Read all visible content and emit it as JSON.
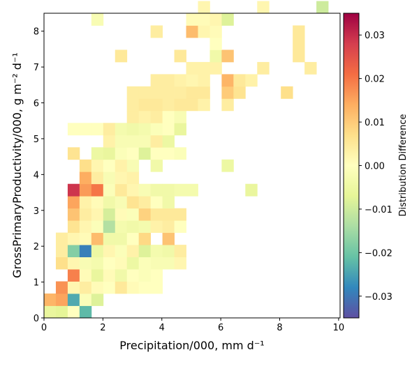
{
  "chart_data": {
    "type": "heatmap",
    "xlabel": "Precipitation/000,  mm d⁻¹",
    "ylabel": "GrossPrimaryProductivity/000,  g m⁻² d⁻¹",
    "colorbar_label": "Distribution Difference",
    "xlim": [
      0,
      10.05
    ],
    "ylim": [
      0,
      8.5
    ],
    "x_ticks": [
      0,
      2,
      4,
      6,
      8,
      10
    ],
    "y_ticks": [
      0,
      1,
      2,
      3,
      4,
      5,
      6,
      7,
      8
    ],
    "colorbar_range": [
      -0.035,
      0.035
    ],
    "colorbar_ticks": [
      -0.03,
      -0.02,
      -0.01,
      0.0,
      0.01,
      0.02,
      0.03
    ],
    "colormap": "Spectral_r",
    "bin_width_x": 0.402,
    "bin_height_y": 0.34,
    "cells": [
      [
        0,
        0,
        -0.006
      ],
      [
        1,
        0,
        -0.007
      ],
      [
        2,
        0,
        0.0
      ],
      [
        3,
        0,
        -0.022
      ],
      [
        0,
        1,
        0.013
      ],
      [
        1,
        1,
        0.015
      ],
      [
        2,
        1,
        -0.024
      ],
      [
        3,
        1,
        -0.001
      ],
      [
        4,
        1,
        -0.008
      ],
      [
        1,
        2,
        0.017
      ],
      [
        2,
        2,
        0.002
      ],
      [
        3,
        2,
        0.004
      ],
      [
        4,
        2,
        0.001
      ],
      [
        5,
        2,
        0.0
      ],
      [
        6,
        2,
        0.005
      ],
      [
        7,
        2,
        0.001
      ],
      [
        8,
        2,
        0.0
      ],
      [
        9,
        2,
        0.0
      ],
      [
        2,
        3,
        0.019
      ],
      [
        3,
        3,
        0.001
      ],
      [
        4,
        3,
        -0.006
      ],
      [
        5,
        3,
        0.001
      ],
      [
        6,
        3,
        -0.004
      ],
      [
        7,
        3,
        0.0
      ],
      [
        8,
        3,
        -0.001
      ],
      [
        9,
        3,
        0.0
      ],
      [
        1,
        4,
        0.007
      ],
      [
        2,
        4,
        0.002
      ],
      [
        3,
        4,
        -0.002
      ],
      [
        4,
        4,
        -0.003
      ],
      [
        5,
        4,
        0.0
      ],
      [
        6,
        4,
        0.001
      ],
      [
        7,
        4,
        -0.005
      ],
      [
        8,
        4,
        -0.001
      ],
      [
        9,
        4,
        -0.002
      ],
      [
        10,
        4,
        -0.002
      ],
      [
        11,
        4,
        0.002
      ],
      [
        1,
        5,
        0.004
      ],
      [
        2,
        5,
        -0.018
      ],
      [
        3,
        5,
        -0.029
      ],
      [
        4,
        5,
        -0.005
      ],
      [
        5,
        5,
        0.002
      ],
      [
        6,
        5,
        -0.001
      ],
      [
        7,
        5,
        0.003
      ],
      [
        8,
        5,
        -0.008
      ],
      [
        9,
        5,
        -0.003
      ],
      [
        10,
        5,
        -0.004
      ],
      [
        11,
        5,
        0.004
      ],
      [
        1,
        6,
        0.004
      ],
      [
        2,
        6,
        0.002
      ],
      [
        3,
        6,
        0.001
      ],
      [
        4,
        6,
        0.012
      ],
      [
        5,
        6,
        -0.004
      ],
      [
        6,
        6,
        -0.004
      ],
      [
        7,
        6,
        0.0
      ],
      [
        8,
        6,
        0.008
      ],
      [
        10,
        6,
        0.011
      ],
      [
        2,
        7,
        0.006
      ],
      [
        3,
        7,
        0.002
      ],
      [
        4,
        7,
        -0.001
      ],
      [
        5,
        7,
        -0.013
      ],
      [
        6,
        7,
        -0.003
      ],
      [
        7,
        7,
        -0.004
      ],
      [
        8,
        7,
        -0.003
      ],
      [
        9,
        7,
        0.003
      ],
      [
        10,
        7,
        0.004
      ],
      [
        11,
        7,
        0.0
      ],
      [
        2,
        8,
        0.011
      ],
      [
        3,
        8,
        0.004
      ],
      [
        4,
        8,
        0.002
      ],
      [
        5,
        8,
        -0.009
      ],
      [
        6,
        8,
        0.001
      ],
      [
        7,
        8,
        -0.001
      ],
      [
        8,
        8,
        0.009
      ],
      [
        9,
        8,
        0.005
      ],
      [
        10,
        8,
        0.005
      ],
      [
        11,
        8,
        0.005
      ],
      [
        2,
        9,
        0.015
      ],
      [
        3,
        9,
        0.003
      ],
      [
        4,
        9,
        0.001
      ],
      [
        5,
        9,
        -0.004
      ],
      [
        6,
        9,
        -0.002
      ],
      [
        7,
        9,
        0.006
      ],
      [
        8,
        9,
        0.004
      ],
      [
        9,
        9,
        0.0
      ],
      [
        10,
        9,
        -0.004
      ],
      [
        2,
        10,
        0.029
      ],
      [
        3,
        10,
        0.016
      ],
      [
        4,
        10,
        0.02
      ],
      [
        5,
        10,
        -0.001
      ],
      [
        6,
        10,
        0.005
      ],
      [
        7,
        10,
        0.002
      ],
      [
        8,
        10,
        -0.002
      ],
      [
        9,
        10,
        -0.004
      ],
      [
        10,
        10,
        -0.004
      ],
      [
        11,
        10,
        -0.003
      ],
      [
        12,
        10,
        -0.003
      ],
      [
        17,
        10,
        -0.006
      ],
      [
        3,
        11,
        0.014
      ],
      [
        4,
        11,
        0.004
      ],
      [
        5,
        11,
        -0.002
      ],
      [
        6,
        11,
        0.002
      ],
      [
        7,
        11,
        0.003
      ],
      [
        3,
        12,
        0.007
      ],
      [
        4,
        12,
        0.002
      ],
      [
        5,
        12,
        0.0
      ],
      [
        6,
        12,
        0.003
      ],
      [
        7,
        12,
        -0.002
      ],
      [
        9,
        12,
        -0.004
      ],
      [
        15,
        12,
        -0.005
      ],
      [
        2,
        13,
        0.006
      ],
      [
        4,
        13,
        -0.005
      ],
      [
        5,
        13,
        -0.006
      ],
      [
        6,
        13,
        -0.001
      ],
      [
        7,
        13,
        0.0
      ],
      [
        8,
        13,
        -0.008
      ],
      [
        9,
        13,
        0.0
      ],
      [
        10,
        13,
        0.0
      ],
      [
        11,
        13,
        -0.001
      ],
      [
        5,
        14,
        0.003
      ],
      [
        6,
        14,
        -0.002
      ],
      [
        7,
        14,
        -0.002
      ],
      [
        8,
        14,
        -0.002
      ],
      [
        9,
        14,
        0.004
      ],
      [
        10,
        14,
        -0.005
      ],
      [
        2,
        15,
        0.0
      ],
      [
        3,
        15,
        0.0
      ],
      [
        4,
        15,
        0.0
      ],
      [
        5,
        15,
        0.004
      ],
      [
        6,
        15,
        -0.003
      ],
      [
        7,
        15,
        -0.004
      ],
      [
        8,
        15,
        -0.003
      ],
      [
        9,
        15,
        -0.001
      ],
      [
        10,
        15,
        0.0
      ],
      [
        11,
        15,
        -0.006
      ],
      [
        7,
        16,
        0.004
      ],
      [
        8,
        16,
        0.003
      ],
      [
        9,
        16,
        0.004
      ],
      [
        10,
        16,
        0.0
      ],
      [
        11,
        16,
        -0.002
      ],
      [
        7,
        17,
        0.004
      ],
      [
        8,
        17,
        0.005
      ],
      [
        9,
        17,
        0.005
      ],
      [
        10,
        17,
        0.004
      ],
      [
        11,
        17,
        0.005
      ],
      [
        12,
        17,
        0.005
      ],
      [
        13,
        17,
        0.003
      ],
      [
        15,
        17,
        0.004
      ],
      [
        7,
        18,
        0.004
      ],
      [
        8,
        18,
        0.004
      ],
      [
        9,
        18,
        0.004
      ],
      [
        10,
        18,
        0.004
      ],
      [
        11,
        18,
        0.004
      ],
      [
        12,
        18,
        0.005
      ],
      [
        13,
        18,
        0.005
      ],
      [
        15,
        18,
        0.01
      ],
      [
        16,
        18,
        0.006
      ],
      [
        20,
        18,
        0.007
      ],
      [
        9,
        19,
        0.004
      ],
      [
        10,
        19,
        0.004
      ],
      [
        11,
        19,
        0.003
      ],
      [
        12,
        19,
        0.002
      ],
      [
        13,
        19,
        0.003
      ],
      [
        15,
        19,
        0.013
      ],
      [
        16,
        19,
        0.005
      ],
      [
        17,
        19,
        0.003
      ],
      [
        12,
        20,
        0.003
      ],
      [
        13,
        20,
        0.003
      ],
      [
        14,
        20,
        0.003
      ],
      [
        18,
        20,
        0.004
      ],
      [
        22,
        20,
        0.004
      ],
      [
        6,
        21,
        0.005
      ],
      [
        11,
        21,
        0.005
      ],
      [
        14,
        21,
        -0.004
      ],
      [
        15,
        21,
        0.011
      ],
      [
        21,
        21,
        0.005
      ],
      [
        14,
        22,
        0.0
      ],
      [
        21,
        22,
        0.005
      ],
      [
        9,
        23,
        0.004
      ],
      [
        12,
        23,
        0.012
      ],
      [
        13,
        23,
        0.002
      ],
      [
        14,
        23,
        0.001
      ],
      [
        21,
        23,
        0.005
      ],
      [
        4,
        24,
        -0.002
      ],
      [
        12,
        24,
        0.001
      ],
      [
        13,
        24,
        0.001
      ],
      [
        14,
        24,
        0.002
      ],
      [
        15,
        24,
        -0.008
      ],
      [
        13,
        25,
        0.002
      ],
      [
        18,
        25,
        0.002
      ],
      [
        23,
        25,
        -0.01
      ]
    ]
  }
}
